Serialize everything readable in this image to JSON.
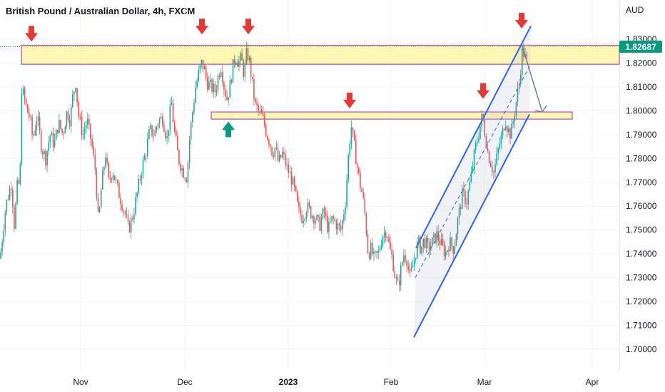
{
  "header": {
    "title": "British Pound / Australian Dollar, 4h, FXCM"
  },
  "chart_data": {
    "type": "candlestick",
    "symbol": "British Pound / Australian Dollar",
    "interval": "4h",
    "source": "FXCM",
    "currency_unit": "AUD",
    "y_ticks": [
      "1.83000",
      "1.82000",
      "1.81000",
      "1.80000",
      "1.79000",
      "1.78000",
      "1.77000",
      "1.76000",
      "1.75000",
      "1.74000",
      "1.73000",
      "1.72000",
      "1.71000",
      "1.70000"
    ],
    "x_ticks": [
      {
        "label": "Nov",
        "bold": false
      },
      {
        "label": "Dec",
        "bold": false
      },
      {
        "label": "2023",
        "bold": true
      },
      {
        "label": "Feb",
        "bold": false
      },
      {
        "label": "Mar",
        "bold": false
      },
      {
        "label": "Apr",
        "bold": false
      }
    ],
    "ylim": [
      1.698,
      1.838
    ],
    "last_price": "1.82687",
    "colors": {
      "up": "#26a69a",
      "down": "#ef5350",
      "zone_fill": "#fff176",
      "zone_border": "#9c27b0",
      "arrow_red": "#e53935",
      "arrow_green": "#089981",
      "channel": "#2962ff",
      "price_tag": "#089981"
    },
    "close_path": [
      [
        0,
        1.738
      ],
      [
        8,
        1.76
      ],
      [
        16,
        1.77
      ],
      [
        20,
        1.752
      ],
      [
        24,
        1.768
      ],
      [
        28,
        1.77
      ],
      [
        30,
        1.81
      ],
      [
        34,
        1.805
      ],
      [
        38,
        1.8
      ],
      [
        42,
        1.797
      ],
      [
        46,
        1.788
      ],
      [
        52,
        1.798
      ],
      [
        58,
        1.785
      ],
      [
        64,
        1.78
      ],
      [
        70,
        1.79
      ],
      [
        76,
        1.786
      ],
      [
        82,
        1.795
      ],
      [
        88,
        1.79
      ],
      [
        94,
        1.8
      ],
      [
        98,
        1.796
      ],
      [
        102,
        1.806
      ],
      [
        106,
        1.812
      ],
      [
        110,
        1.798
      ],
      [
        116,
        1.79
      ],
      [
        122,
        1.796
      ],
      [
        128,
        1.787
      ],
      [
        134,
        1.774
      ],
      [
        138,
        1.752
      ],
      [
        142,
        1.768
      ],
      [
        148,
        1.782
      ],
      [
        152,
        1.77
      ],
      [
        158,
        1.775
      ],
      [
        164,
        1.768
      ],
      [
        170,
        1.762
      ],
      [
        176,
        1.756
      ],
      [
        180,
        1.75
      ],
      [
        186,
        1.756
      ],
      [
        192,
        1.765
      ],
      [
        198,
        1.775
      ],
      [
        204,
        1.782
      ],
      [
        210,
        1.792
      ],
      [
        216,
        1.79
      ],
      [
        222,
        1.796
      ],
      [
        228,
        1.797
      ],
      [
        234,
        1.788
      ],
      [
        240,
        1.804
      ],
      [
        244,
        1.792
      ],
      [
        250,
        1.78
      ],
      [
        256,
        1.775
      ],
      [
        262,
        1.772
      ],
      [
        266,
        1.79
      ],
      [
        270,
        1.8
      ],
      [
        274,
        1.81
      ],
      [
        278,
        1.815
      ],
      [
        282,
        1.82
      ],
      [
        286,
        1.818
      ],
      [
        290,
        1.812
      ],
      [
        296,
        1.81
      ],
      [
        302,
        1.808
      ],
      [
        306,
        1.815
      ],
      [
        310,
        1.819
      ],
      [
        314,
        1.81
      ],
      [
        318,
        1.805
      ],
      [
        322,
        1.81
      ],
      [
        326,
        1.818
      ],
      [
        330,
        1.823
      ],
      [
        334,
        1.82
      ],
      [
        338,
        1.822
      ],
      [
        342,
        1.815
      ],
      [
        346,
        1.825
      ],
      [
        350,
        1.82
      ],
      [
        354,
        1.81
      ],
      [
        358,
        1.802
      ],
      [
        362,
        1.8
      ],
      [
        366,
        1.798
      ],
      [
        370,
        1.795
      ],
      [
        374,
        1.79
      ],
      [
        378,
        1.787
      ],
      [
        382,
        1.782
      ],
      [
        386,
        1.785
      ],
      [
        390,
        1.778
      ],
      [
        396,
        1.782
      ],
      [
        402,
        1.776
      ],
      [
        408,
        1.772
      ],
      [
        414,
        1.765
      ],
      [
        418,
        1.758
      ],
      [
        424,
        1.755
      ],
      [
        430,
        1.76
      ],
      [
        436,
        1.757
      ],
      [
        442,
        1.755
      ],
      [
        448,
        1.752
      ],
      [
        454,
        1.758
      ],
      [
        460,
        1.75
      ],
      [
        466,
        1.755
      ],
      [
        472,
        1.752
      ],
      [
        478,
        1.75
      ],
      [
        484,
        1.762
      ],
      [
        488,
        1.78
      ],
      [
        492,
        1.794
      ],
      [
        496,
        1.786
      ],
      [
        500,
        1.778
      ],
      [
        504,
        1.77
      ],
      [
        508,
        1.765
      ],
      [
        512,
        1.755
      ],
      [
        516,
        1.74
      ],
      [
        520,
        1.742
      ],
      [
        524,
        1.738
      ],
      [
        530,
        1.74
      ],
      [
        536,
        1.748
      ],
      [
        542,
        1.75
      ],
      [
        546,
        1.742
      ],
      [
        550,
        1.738
      ],
      [
        554,
        1.73
      ],
      [
        558,
        1.726
      ],
      [
        562,
        1.734
      ],
      [
        566,
        1.74
      ],
      [
        570,
        1.738
      ],
      [
        574,
        1.73
      ],
      [
        578,
        1.734
      ],
      [
        582,
        1.74
      ],
      [
        586,
        1.745
      ],
      [
        590,
        1.742
      ],
      [
        594,
        1.746
      ],
      [
        600,
        1.742
      ],
      [
        606,
        1.745
      ],
      [
        612,
        1.748
      ],
      [
        618,
        1.744
      ],
      [
        624,
        1.74
      ],
      [
        630,
        1.745
      ],
      [
        636,
        1.742
      ],
      [
        642,
        1.755
      ],
      [
        648,
        1.765
      ],
      [
        654,
        1.762
      ],
      [
        660,
        1.772
      ],
      [
        666,
        1.784
      ],
      [
        672,
        1.792
      ],
      [
        676,
        1.798
      ],
      [
        680,
        1.79
      ],
      [
        684,
        1.782
      ],
      [
        688,
        1.778
      ],
      [
        692,
        1.774
      ],
      [
        696,
        1.78
      ],
      [
        700,
        1.786
      ],
      [
        704,
        1.79
      ],
      [
        708,
        1.797
      ],
      [
        712,
        1.792
      ],
      [
        716,
        1.79
      ],
      [
        720,
        1.797
      ],
      [
        724,
        1.805
      ],
      [
        728,
        1.812
      ],
      [
        732,
        1.826
      ],
      [
        736,
        1.822
      ],
      [
        740,
        1.82
      ]
    ],
    "zones": [
      {
        "name": "resistance-zone-top",
        "y1": 1.8195,
        "y2": 1.8275,
        "x1": 30,
        "x2": 868
      },
      {
        "name": "resistance-zone-mid",
        "y1": 1.7965,
        "y2": 1.7995,
        "x1": 296,
        "x2": 802
      }
    ],
    "arrows_down": [
      {
        "x": 44,
        "y": 1.829
      },
      {
        "x": 283,
        "y": 1.832
      },
      {
        "x": 348,
        "y": 1.832
      },
      {
        "x": 490,
        "y": 1.801
      },
      {
        "x": 677,
        "y": 1.805
      },
      {
        "x": 731,
        "y": 1.8345
      }
    ],
    "arrows_up": [
      {
        "x": 320,
        "y": 1.7955
      }
    ],
    "channel": {
      "upper": [
        [
          583,
          1.7425
        ],
        [
          744,
          1.8355
        ]
      ],
      "lower": [
        [
          580,
          1.705
        ],
        [
          742,
          1.7985
        ]
      ],
      "mid": [
        [
          582,
          1.73
        ],
        [
          742,
          1.8185
        ]
      ]
    },
    "projection": [
      [
        733,
        1.826
      ],
      [
        760,
        1.7995
      ]
    ]
  }
}
